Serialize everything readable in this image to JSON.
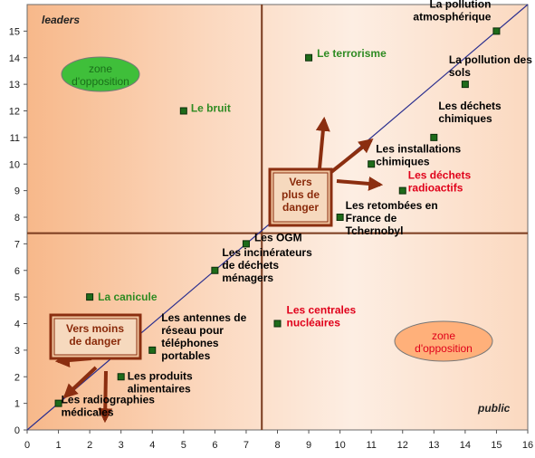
{
  "chart_data": {
    "type": "scatter",
    "xlim": [
      0,
      16
    ],
    "ylim": [
      0,
      16
    ],
    "x_ticks": [
      0,
      1,
      2,
      3,
      4,
      5,
      6,
      7,
      8,
      9,
      10,
      11,
      12,
      13,
      14,
      15,
      16
    ],
    "y_ticks": [
      0,
      1,
      2,
      3,
      4,
      5,
      6,
      7,
      8,
      9,
      10,
      11,
      12,
      13,
      14,
      15
    ],
    "corner_labels": {
      "top_left": "leaders",
      "bottom_right": "public"
    },
    "reference_lines": {
      "vertical_x": 7.5,
      "horizontal_y": 7.4,
      "diagonal": [
        [
          0,
          0
        ],
        [
          16,
          16
        ]
      ]
    },
    "points": [
      {
        "label": [
          "La pollution",
          "atmosphérique"
        ],
        "x": 15,
        "y": 15,
        "color": "#000000"
      },
      {
        "label": [
          "Le terrorisme"
        ],
        "x": 9,
        "y": 14,
        "color": "#2e8b22"
      },
      {
        "label": [
          "La pollution des",
          "sols"
        ],
        "x": 14,
        "y": 13,
        "color": "#000000"
      },
      {
        "label": [
          "Le bruit"
        ],
        "x": 5,
        "y": 12,
        "color": "#2e8b22"
      },
      {
        "label": [
          "Les déchets",
          "chimiques"
        ],
        "x": 13,
        "y": 11,
        "color": "#000000"
      },
      {
        "label": [
          "Les installations",
          "chimiques"
        ],
        "x": 11,
        "y": 10,
        "color": "#000000"
      },
      {
        "label": [
          "Les déchets",
          "radioactifs"
        ],
        "x": 12,
        "y": 9,
        "color": "#e0001a"
      },
      {
        "label": [
          "Les retombées en",
          "France de",
          "Tchernobyl"
        ],
        "x": 10,
        "y": 8,
        "color": "#000000"
      },
      {
        "label": [
          "Les OGM"
        ],
        "x": 7,
        "y": 7,
        "color": "#000000"
      },
      {
        "label": [
          "Les incinérateurs",
          "de déchets",
          "ménagers"
        ],
        "x": 6,
        "y": 6,
        "color": "#000000"
      },
      {
        "label": [
          "La canicule"
        ],
        "x": 2,
        "y": 5,
        "color": "#2e8b22"
      },
      {
        "label": [
          "Les centrales",
          "nucléaires"
        ],
        "x": 8,
        "y": 4,
        "color": "#e0001a"
      },
      {
        "label": [
          "Les antennes de",
          "réseau pour",
          "téléphones",
          "portables"
        ],
        "x": 4,
        "y": 3,
        "color": "#000000"
      },
      {
        "label": [
          "Les produits",
          "alimentaires"
        ],
        "x": 3,
        "y": 2,
        "color": "#000000"
      },
      {
        "label": [
          "Les radiographies",
          "médicales"
        ],
        "x": 1,
        "y": 1,
        "color": "#000000"
      }
    ],
    "zones": [
      {
        "text": [
          "zone",
          "d'opposition"
        ],
        "position": "upper-left",
        "fill": "#3fbf3a",
        "text_color": "#1a6e1a"
      },
      {
        "text": [
          "zone",
          "d'opposition"
        ],
        "position": "lower-right",
        "fill": "#ffb07a",
        "text_color": "#e0001a"
      }
    ],
    "annotations": [
      {
        "text": [
          "Vers",
          "plus de",
          "danger"
        ],
        "position": "center"
      },
      {
        "text": [
          "Vers moins",
          "de danger"
        ],
        "position": "lower-left"
      }
    ]
  }
}
